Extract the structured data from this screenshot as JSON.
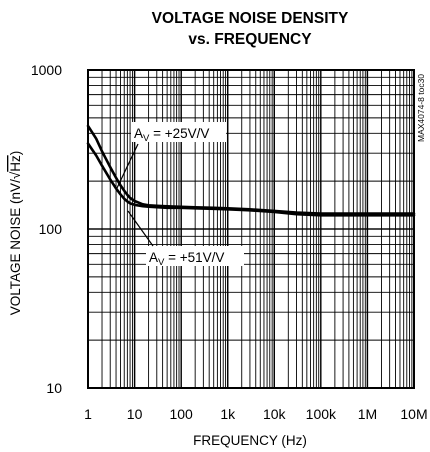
{
  "chart_data": {
    "type": "line",
    "title_lines": [
      "VOLTAGE NOISE DENSITY",
      "vs. FREQUENCY"
    ],
    "xlabel": "FREQUENCY (Hz)",
    "ylabel": "VOLTAGE NOISE (nV/√Hz)",
    "ylabel_parts": {
      "before": "VOLTAGE NOISE (nV/√",
      "over": "Hz",
      "after": ")"
    },
    "xscale": "log",
    "yscale": "log",
    "xlim": [
      1,
      10000000
    ],
    "ylim": [
      10,
      1000
    ],
    "grid": true,
    "x_ticks": [
      {
        "value": 1,
        "label": "1"
      },
      {
        "value": 10,
        "label": "10"
      },
      {
        "value": 100,
        "label": "100"
      },
      {
        "value": 1000,
        "label": "1k"
      },
      {
        "value": 10000,
        "label": "10k"
      },
      {
        "value": 100000,
        "label": "100k"
      },
      {
        "value": 1000000,
        "label": "1M"
      },
      {
        "value": 10000000,
        "label": "10M"
      }
    ],
    "y_ticks": [
      {
        "value": 10,
        "label": "10"
      },
      {
        "value": 100,
        "label": "100"
      },
      {
        "value": 1000,
        "label": "1000"
      }
    ],
    "series": [
      {
        "name": "AV = +25V/V",
        "label_main": "A",
        "label_sub": "V",
        "label_rest": " = +25V/V",
        "x": [
          1,
          1.5,
          2,
          3,
          4,
          5,
          6,
          7,
          8,
          10,
          15,
          20,
          30,
          50,
          100,
          200,
          500,
          1000,
          3000,
          10000,
          30000,
          100000,
          1000000,
          10000000
        ],
        "y": [
          445,
          370,
          308,
          245,
          210,
          188,
          174,
          164,
          157,
          150,
          143,
          141,
          140,
          139,
          138,
          137,
          136,
          135,
          133,
          130,
          127,
          125,
          125,
          125
        ]
      },
      {
        "name": "AV = +51V/V",
        "label_main": "A",
        "label_sub": "V",
        "label_rest": " = +51V/V",
        "x": [
          1,
          1.5,
          2,
          3,
          4,
          5,
          6,
          7,
          8,
          10,
          15,
          20,
          30,
          50,
          100,
          200,
          500,
          1000,
          3000,
          10000,
          30000,
          100000,
          1000000,
          10000000
        ],
        "y": [
          345,
          290,
          250,
          205,
          180,
          165,
          155,
          149,
          145,
          142,
          139,
          138,
          137,
          136,
          136,
          135,
          134,
          133,
          131,
          128,
          124,
          122,
          122,
          122
        ]
      }
    ],
    "side_label": "MAX4074-8 toc30"
  }
}
